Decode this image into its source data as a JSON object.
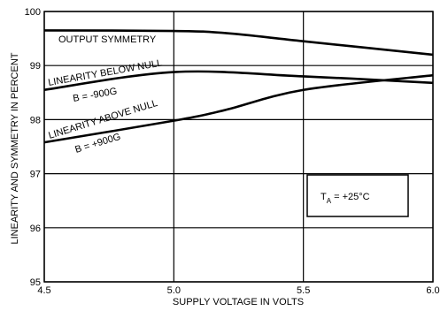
{
  "chart_data": {
    "type": "line",
    "xlabel": "SUPPLY VOLTAGE IN VOLTS",
    "ylabel": "LINEARITY AND SYMMETRY IN PERCENT",
    "xlim": [
      4.5,
      6.0
    ],
    "ylim": [
      95,
      100
    ],
    "x_ticks": [
      "4.5",
      "5.0",
      "5.5",
      "6.0"
    ],
    "y_ticks": [
      "95",
      "96",
      "97",
      "98",
      "99",
      "100"
    ],
    "grid": true,
    "series": [
      {
        "name": "OUTPUT SYMMETRY",
        "x": [
          4.5,
          5.0,
          5.2,
          5.5,
          6.0
        ],
        "values": [
          99.65,
          99.64,
          99.6,
          99.45,
          99.2
        ]
      },
      {
        "name": "LINEARITY BELOW NULL",
        "sublabel": "B = -900G",
        "x": [
          4.5,
          5.0,
          5.5,
          6.0
        ],
        "values": [
          98.55,
          98.88,
          98.8,
          98.68
        ]
      },
      {
        "name": "LINEARITY ABOVE NULL",
        "sublabel": "B = +900G",
        "x": [
          4.5,
          5.0,
          5.2,
          5.5,
          6.0
        ],
        "values": [
          97.58,
          97.98,
          98.18,
          98.55,
          98.82
        ]
      }
    ],
    "annotation": {
      "prefix": "T",
      "subscript": "A",
      "suffix": " = +25°C"
    }
  }
}
